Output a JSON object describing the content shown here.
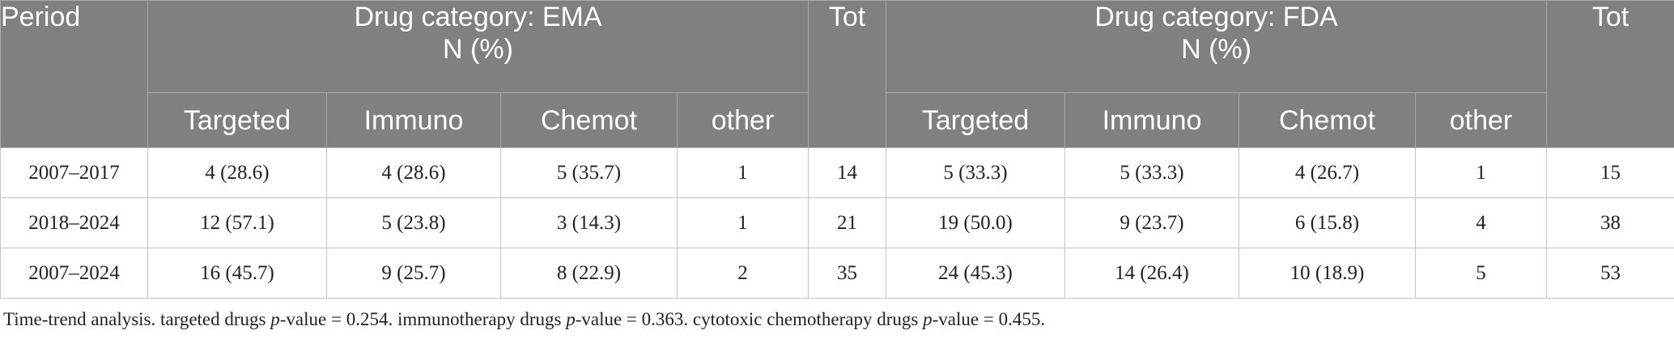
{
  "table": {
    "headers": {
      "period": "Period",
      "ema_group_line1": "Drug category: EMA",
      "ema_group_line2": "N (%)",
      "tot_ema": "Tot",
      "fda_group_line1": "Drug category: FDA",
      "fda_group_line2": "N (%)",
      "tot_fda": "Tot",
      "sub": [
        "Targeted",
        "Immuno",
        "Chemot",
        "other",
        "Targeted",
        "Immuno",
        "Chemot",
        "other"
      ]
    },
    "rows": [
      {
        "period": "2007–2017",
        "ema": [
          "4 (28.6)",
          "4 (28.6)",
          "5 (35.7)",
          "1"
        ],
        "ema_tot": "14",
        "fda": [
          "5 (33.3)",
          "5 (33.3)",
          "4 (26.7)",
          "1"
        ],
        "fda_tot": "15"
      },
      {
        "period": "2018–2024",
        "ema": [
          "12 (57.1)",
          "5 (23.8)",
          "3 (14.3)",
          "1"
        ],
        "ema_tot": "21",
        "fda": [
          "19 (50.0)",
          "9 (23.7)",
          "6 (15.8)",
          "4"
        ],
        "fda_tot": "38"
      },
      {
        "period": "2007–2024",
        "ema": [
          "16 (45.7)",
          "9 (25.7)",
          "8 (22.9)",
          "2"
        ],
        "ema_tot": "35",
        "fda": [
          "24 (45.3)",
          "14 (26.4)",
          "10 (18.9)",
          "5"
        ],
        "fda_tot": "53"
      }
    ]
  },
  "caption": {
    "part1": "Time-trend analysis. targeted drugs ",
    "p1": "p",
    "part2": "-value = 0.254. immunotherapy drugs ",
    "p2": "p",
    "part3": "-value = 0.363. cytotoxic chemotherapy drugs ",
    "p3": "p",
    "part4": "-value = 0.455."
  },
  "colors": {
    "header_bg": "#808080",
    "header_text": "#ffffff",
    "body_text": "#222222",
    "grid": "#c4c4c4"
  }
}
